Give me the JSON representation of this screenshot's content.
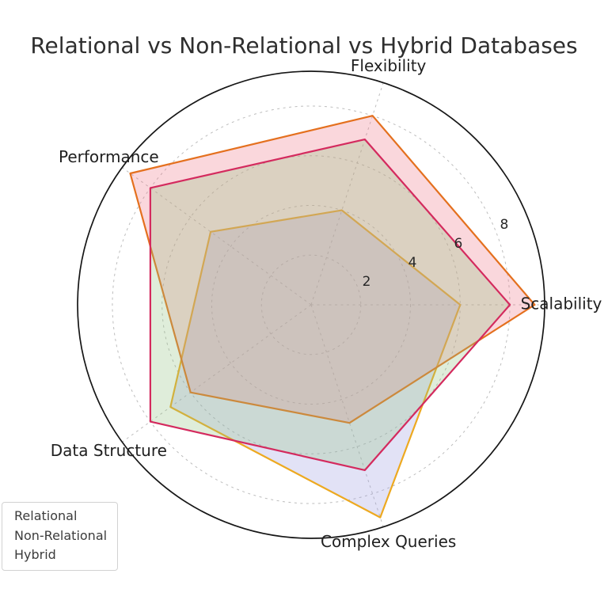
{
  "chart_data": {
    "type": "radar",
    "title": "Relational vs Non-Relational vs Hybrid Databases",
    "categories": [
      "Scalability",
      "Flexibility",
      "Performance",
      "Data Structure",
      "Complex Queries"
    ],
    "angles_deg": [
      0,
      72,
      144,
      216,
      288
    ],
    "r_ticks": [
      2,
      4,
      6,
      8
    ],
    "r_max": 9.4,
    "tick_angle_deg": 22.5,
    "grid": true,
    "grid_color": "#bdbdbd",
    "spine_color": "#161616",
    "legend_position": "lower left",
    "series": [
      {
        "name": "Relational",
        "line_color": "#EDA920",
        "fill_color": "rgba(158,158,225,0.30)",
        "values": [
          6,
          4,
          5,
          7,
          9
        ]
      },
      {
        "name": "Non-Relational",
        "line_color": "#E4701E",
        "fill_color": "rgba(238,122,138,0.30)",
        "values": [
          9,
          8,
          9,
          6,
          5
        ]
      },
      {
        "name": "Hybrid",
        "line_color": "#D42A5E",
        "fill_color": "rgba(148,195,132,0.30)",
        "values": [
          8,
          7,
          8,
          8,
          7
        ]
      }
    ]
  },
  "legend": {
    "items": [
      "Relational",
      "Non-Relational",
      "Hybrid"
    ]
  }
}
